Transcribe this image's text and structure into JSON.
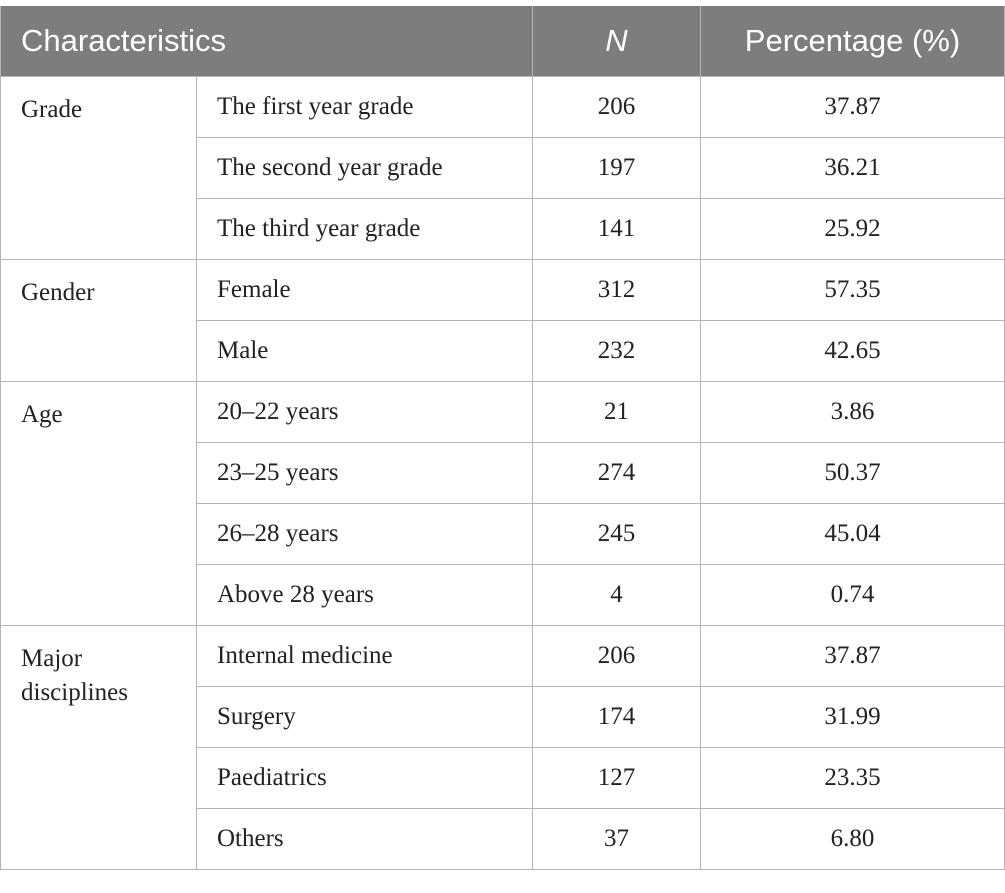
{
  "header": {
    "characteristics": "Characteristics",
    "n": "N",
    "percentage": "Percentage (%)"
  },
  "groups": [
    {
      "label": "Grade",
      "rows": [
        {
          "item": "The first year grade",
          "n": "206",
          "pct": "37.87"
        },
        {
          "item": "The second year grade",
          "n": "197",
          "pct": "36.21"
        },
        {
          "item": "The third year grade",
          "n": "141",
          "pct": "25.92"
        }
      ]
    },
    {
      "label": "Gender",
      "rows": [
        {
          "item": "Female",
          "n": "312",
          "pct": "57.35"
        },
        {
          "item": "Male",
          "n": "232",
          "pct": "42.65"
        }
      ]
    },
    {
      "label": "Age",
      "rows": [
        {
          "item": "20–22 years",
          "n": "21",
          "pct": "3.86"
        },
        {
          "item": "23–25 years",
          "n": "274",
          "pct": "50.37"
        },
        {
          "item": "26–28 years",
          "n": "245",
          "pct": "45.04"
        },
        {
          "item": "Above 28 years",
          "n": "4",
          "pct": "0.74"
        }
      ]
    },
    {
      "label": "Major disciplines",
      "rows": [
        {
          "item": "Internal medicine",
          "n": "206",
          "pct": "37.87"
        },
        {
          "item": "Surgery",
          "n": "174",
          "pct": "31.99"
        },
        {
          "item": "Paediatrics",
          "n": "127",
          "pct": "23.35"
        },
        {
          "item": "Others",
          "n": "37",
          "pct": "6.80"
        }
      ]
    }
  ]
}
